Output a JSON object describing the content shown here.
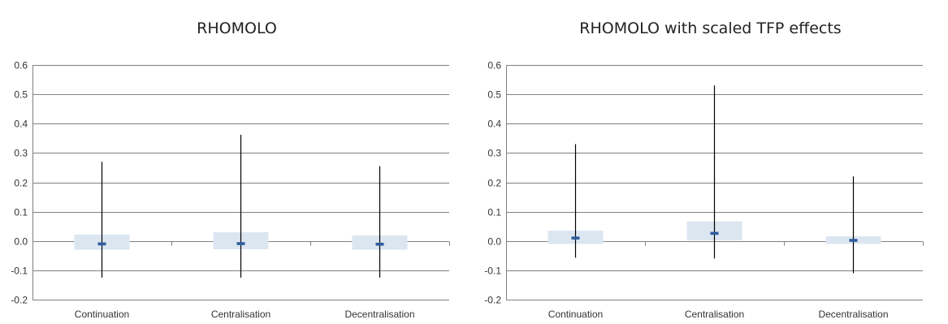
{
  "colors": {
    "box_fill": "#dce6f1",
    "median": "#2e5d9e",
    "whisker": "#000000",
    "grid": "#808080",
    "text": "#333333"
  },
  "chart_data": [
    {
      "type": "box",
      "title": "RHOMOLO",
      "categories": [
        "Continuation",
        "Centralisation",
        "Decentralisation"
      ],
      "ylim": [
        -0.2,
        0.6
      ],
      "yticks": [
        "-0.2",
        "-0.1",
        "0.0",
        "0.1",
        "0.2",
        "0.3",
        "0.4",
        "0.5",
        "0.6"
      ],
      "grid": true,
      "legend": "none",
      "boxes": [
        {
          "min": -0.125,
          "q1": -0.03,
          "median": -0.01,
          "q3": 0.022,
          "max": 0.27
        },
        {
          "min": -0.125,
          "q1": -0.028,
          "median": -0.009,
          "q3": 0.03,
          "max": 0.362
        },
        {
          "min": -0.125,
          "q1": -0.03,
          "median": -0.011,
          "q3": 0.019,
          "max": 0.255
        }
      ]
    },
    {
      "type": "box",
      "title": "RHOMOLO with scaled TFP effects",
      "categories": [
        "Continuation",
        "Centralisation",
        "Decentralisation"
      ],
      "ylim": [
        -0.2,
        0.6
      ],
      "yticks": [
        "-0.2",
        "-0.1",
        "0.0",
        "0.1",
        "0.2",
        "0.3",
        "0.4",
        "0.5",
        "0.6"
      ],
      "grid": true,
      "legend": "none",
      "boxes": [
        {
          "min": -0.057,
          "q1": -0.01,
          "median": 0.01,
          "q3": 0.035,
          "max": 0.33
        },
        {
          "min": -0.06,
          "q1": 0.002,
          "median": 0.026,
          "q3": 0.067,
          "max": 0.53
        },
        {
          "min": -0.11,
          "q1": -0.01,
          "median": 0.002,
          "q3": 0.016,
          "max": 0.22
        }
      ]
    }
  ]
}
